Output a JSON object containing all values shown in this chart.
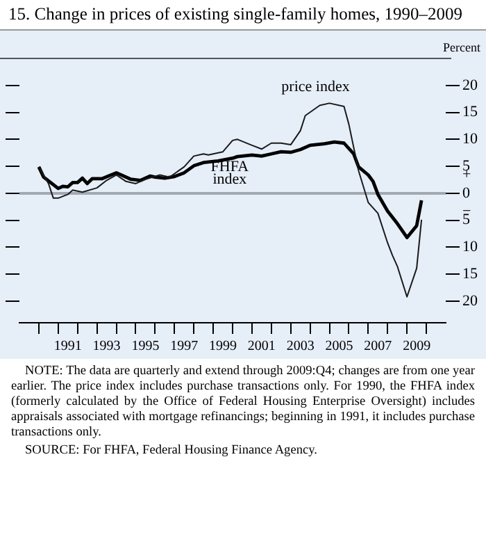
{
  "chart_data": {
    "type": "line",
    "title": "15.  Change in prices of existing single-family homes, 1990–2009",
    "ylabel": "Percent",
    "xlim": [
      1989,
      2011
    ],
    "xticks": [
      {
        "value": 1990,
        "label": null
      },
      {
        "value": 1991,
        "label": null
      },
      {
        "value": 1991.5,
        "label": "1991"
      },
      {
        "value": 1992,
        "label": null
      },
      {
        "value": 1993,
        "label": null
      },
      {
        "value": 1993.5,
        "label": "1993"
      },
      {
        "value": 1994,
        "label": null
      },
      {
        "value": 1995,
        "label": null
      },
      {
        "value": 1995.5,
        "label": "1995"
      },
      {
        "value": 1996,
        "label": null
      },
      {
        "value": 1997,
        "label": null
      },
      {
        "value": 1997.5,
        "label": "1997"
      },
      {
        "value": 1998,
        "label": null
      },
      {
        "value": 1999,
        "label": null
      },
      {
        "value": 1999.5,
        "label": "1999"
      },
      {
        "value": 2000,
        "label": null
      },
      {
        "value": 2001,
        "label": null
      },
      {
        "value": 2001.5,
        "label": "2001"
      },
      {
        "value": 2002,
        "label": null
      },
      {
        "value": 2003,
        "label": null
      },
      {
        "value": 2003.5,
        "label": "2003"
      },
      {
        "value": 2004,
        "label": null
      },
      {
        "value": 2005,
        "label": null
      },
      {
        "value": 2005.5,
        "label": "2005"
      },
      {
        "value": 2006,
        "label": null
      },
      {
        "value": 2007,
        "label": null
      },
      {
        "value": 2007.5,
        "label": "2007"
      },
      {
        "value": 2008,
        "label": null
      },
      {
        "value": 2009,
        "label": null
      },
      {
        "value": 2009.5,
        "label": "2009"
      },
      {
        "value": 2010,
        "label": null
      }
    ],
    "ylim": [
      -24,
      25
    ],
    "yticks": [
      {
        "value": -20,
        "label": "20"
      },
      {
        "value": -15,
        "label": "15"
      },
      {
        "value": -10,
        "label": "10"
      },
      {
        "value": -5,
        "label": "5"
      },
      {
        "value": 0,
        "label": "+ 0 −"
      },
      5,
      10,
      15,
      20
    ],
    "ref_lines": [
      {
        "axis": "y",
        "value": 0,
        "color": "#a3a9b0"
      }
    ],
    "series": [
      {
        "name": "price index",
        "color": "#1a1a1a",
        "x": [
          1990.0,
          1990.5,
          1990.75,
          1991.0,
          1991.5,
          1991.75,
          1992.25,
          1993.0,
          1993.5,
          1994.0,
          1994.5,
          1995.0,
          1995.5,
          1996.25,
          1996.75,
          1997.5,
          1998.0,
          1998.5,
          1998.75,
          1999.5,
          2000.0,
          2000.25,
          2001.0,
          2001.5,
          2002.0,
          2002.5,
          2003.0,
          2003.5,
          2003.75,
          2004.5,
          2005.0,
          2005.75,
          2006.0,
          2006.5,
          2007.0,
          2007.5,
          2008.0,
          2008.25,
          2008.5,
          2009.0,
          2009.5,
          2009.75
        ],
        "values": [
          4.9,
          1.8,
          -0.9,
          -0.9,
          -0.2,
          0.6,
          0.2,
          1.0,
          2.4,
          3.4,
          2.2,
          1.8,
          2.6,
          3.4,
          3.0,
          4.9,
          6.9,
          7.3,
          7.1,
          7.7,
          9.8,
          10.0,
          8.9,
          8.2,
          9.3,
          9.3,
          9.0,
          11.6,
          14.4,
          16.3,
          16.7,
          16.1,
          12.8,
          4.2,
          -1.7,
          -3.7,
          -9.2,
          -11.5,
          -13.5,
          -19.2,
          -13.9,
          -4.9
        ]
      },
      {
        "name": "FHFA index",
        "color": "#000000",
        "x": [
          1990.0,
          1990.25,
          1991.0,
          1991.25,
          1991.5,
          1991.75,
          1992.0,
          1992.25,
          1992.5,
          1992.75,
          1993.25,
          1994.0,
          1994.25,
          1994.75,
          1995.25,
          1995.75,
          1996.0,
          1996.5,
          1997.0,
          1997.5,
          1998.0,
          1998.5,
          1999.25,
          2000.0,
          2000.25,
          2001.0,
          2001.5,
          2002.0,
          2002.5,
          2003.0,
          2003.5,
          2004.0,
          2004.75,
          2005.25,
          2005.75,
          2006.25,
          2006.5,
          2007.0,
          2007.25,
          2007.5,
          2008.0,
          2008.5,
          2009.0,
          2009.5,
          2009.75
        ],
        "values": [
          4.9,
          3.0,
          0.9,
          1.3,
          1.2,
          2.0,
          2.0,
          2.8,
          1.8,
          2.7,
          2.7,
          3.8,
          3.4,
          2.6,
          2.4,
          3.2,
          3.0,
          2.8,
          3.1,
          3.8,
          5.1,
          5.7,
          6.0,
          6.5,
          6.8,
          7.1,
          6.9,
          7.3,
          7.7,
          7.6,
          8.1,
          8.9,
          9.2,
          9.5,
          9.3,
          7.3,
          4.9,
          3.4,
          2.2,
          -0.2,
          -3.3,
          -5.6,
          -8.2,
          -6.0,
          -1.3
        ]
      }
    ],
    "annotations": [
      "NOTE: The data are quarterly and extend through 2009:Q4; changes are from one year earlier. The price index includes purchase transactions only. For 1990, the FHFA index (formerly calculated by the Office of Federal Housing Enterprise Oversight) includes appraisals associated with mortgage refinancings; beginning in 1991, it includes purchase transactions only.",
      "SOURCE: For FHFA, Federal Housing Finance Agency."
    ]
  }
}
